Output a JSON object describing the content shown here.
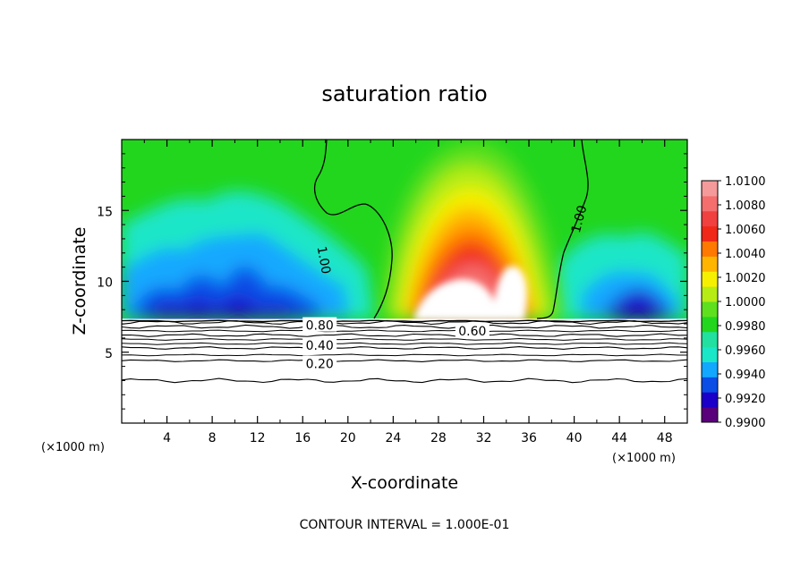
{
  "chart_data": {
    "type": "heatmap",
    "title": "saturation ratio",
    "xlabel": "X-coordinate",
    "ylabel": "Z-coordinate",
    "x_unit_left": "(×1000 m)",
    "x_unit_right": "(×1000 m)",
    "xlim": [
      0,
      50
    ],
    "ylim": [
      0,
      20
    ],
    "x_ticks": [
      4,
      8,
      12,
      16,
      20,
      24,
      28,
      32,
      36,
      40,
      44,
      48
    ],
    "y_ticks": [
      5,
      10,
      15
    ],
    "footnote": "CONTOUR INTERVAL = 1.000E-01",
    "colorbar": {
      "levels": [
        "0.9900",
        "0.9920",
        "0.9940",
        "0.9960",
        "0.9980",
        "1.0000",
        "1.0020",
        "1.0040",
        "1.0060",
        "1.0080",
        "1.0100"
      ],
      "colors": [
        "#5a007a",
        "#1a00c8",
        "#0a4ee6",
        "#12a8ff",
        "#1ae6c8",
        "#22e0a0",
        "#22d61e",
        "#5ee01e",
        "#b6ec14",
        "#f6f000",
        "#ffb400",
        "#ff7800",
        "#f02818",
        "#f04040",
        "#f46e6e",
        "#f49a9a"
      ]
    },
    "contour_labels": [
      {
        "text": "1.00",
        "x": 17.9,
        "y": 11.5,
        "rotate": 80
      },
      {
        "text": "1.00",
        "x": 40.4,
        "y": 14.4,
        "rotate": -75
      },
      {
        "text": "0.80",
        "x": 17.5,
        "y": 6.9,
        "rotate": 0
      },
      {
        "text": "0.60",
        "x": 31.0,
        "y": 6.5,
        "rotate": 0
      },
      {
        "text": "0.40",
        "x": 17.5,
        "y": 5.5,
        "rotate": 0
      },
      {
        "text": "0.20",
        "x": 17.5,
        "y": 4.2,
        "rotate": 0
      }
    ],
    "subsaturated_contours": [
      {
        "level": 0.2,
        "z": 4.4
      },
      {
        "level": 0.4,
        "z": 5.3
      },
      {
        "level": 0.6,
        "z": 6.2
      },
      {
        "level": 0.8,
        "z": 6.8
      },
      {
        "level": 0.9,
        "z": 7.1
      },
      {
        "level": 0.0,
        "z": 3.0
      }
    ],
    "cloud_layer_base_z": 7.2,
    "field_description": "Supersaturation up to 1.0100 in a plume centred near x=31 (×1000 m), z=10–15; subsaturated (0.99–0.998) cells near z=8 at x=2–20 and x=42–48; dry layer below z≈7.2 with contours 0.20–0.80"
  }
}
